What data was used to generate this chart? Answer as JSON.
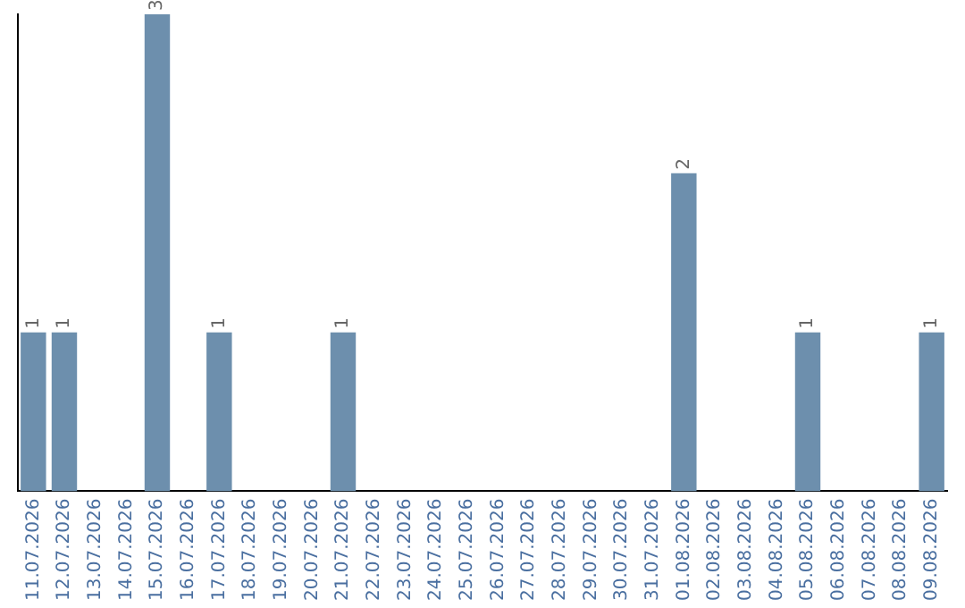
{
  "chart_data": {
    "type": "bar",
    "categories": [
      "11.07.2026",
      "12.07.2026",
      "13.07.2026",
      "14.07.2026",
      "15.07.2026",
      "16.07.2026",
      "17.07.2026",
      "18.07.2026",
      "19.07.2026",
      "20.07.2026",
      "21.07.2026",
      "22.07.2026",
      "23.07.2026",
      "24.07.2026",
      "25.07.2026",
      "26.07.2026",
      "27.07.2026",
      "28.07.2026",
      "29.07.2026",
      "30.07.2026",
      "31.07.2026",
      "01.08.2026",
      "02.08.2026",
      "03.08.2026",
      "04.08.2026",
      "05.08.2026",
      "06.08.2026",
      "07.08.2026",
      "08.08.2026",
      "09.08.2026"
    ],
    "values": [
      1,
      1,
      0,
      0,
      3,
      0,
      1,
      0,
      0,
      0,
      1,
      0,
      0,
      0,
      0,
      0,
      0,
      0,
      0,
      0,
      0,
      2,
      0,
      0,
      0,
      1,
      0,
      0,
      0,
      1
    ],
    "value_labels": [
      "1",
      "1",
      null,
      null,
      "3",
      null,
      "1",
      null,
      null,
      null,
      "1",
      null,
      null,
      null,
      null,
      null,
      null,
      null,
      null,
      null,
      null,
      "2",
      null,
      null,
      null,
      "1",
      null,
      null,
      null,
      "1"
    ],
    "color": "#6d8fad",
    "grid": false,
    "legend": false,
    "tick_labels": "x"
  }
}
